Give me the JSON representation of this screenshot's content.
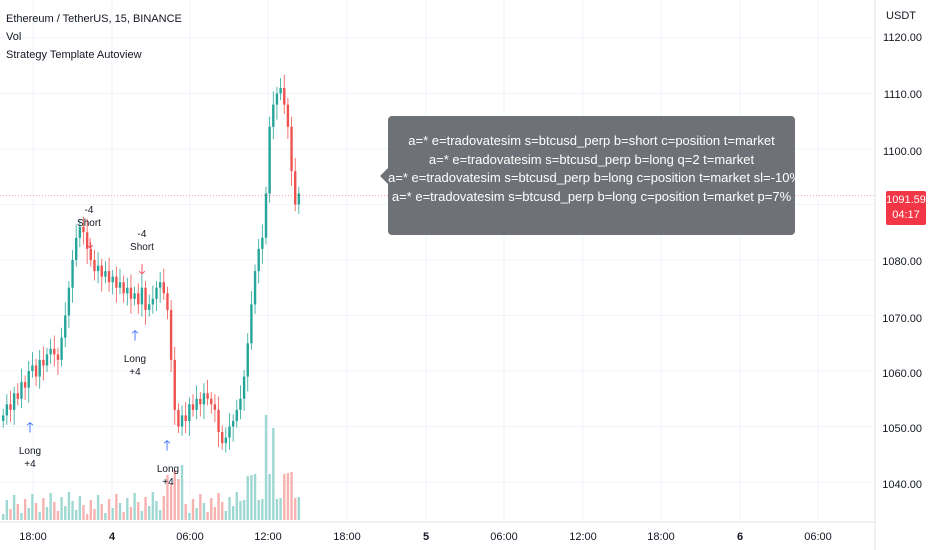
{
  "legend": {
    "symbol": "Ethereum / TetherUS, 15, BINANCE",
    "volume": "Vol",
    "strategy": "Strategy Template Autoview"
  },
  "y_axis": {
    "currency": "USDT",
    "ticks": [
      "1120.00",
      "1110.00",
      "1100.00",
      "1080.00",
      "1070.00",
      "1060.00",
      "1050.00",
      "1040.00"
    ]
  },
  "x_axis": {
    "ticks": [
      "18:00",
      "4",
      "06:00",
      "12:00",
      "18:00",
      "5",
      "06:00",
      "12:00",
      "18:00",
      "6",
      "06:00"
    ]
  },
  "last_price": {
    "price": "1091.59",
    "countdown": "04:17",
    "color": "#f23645"
  },
  "tooltip": {
    "lines": [
      "a=* e=tradovatesim s=btcusd_perp b=short c=position t=market",
      "a=* e=tradovatesim s=btcusd_perp b=long q=2 t=market",
      "a=* e=tradovatesim s=btcusd_perp b=long c=position t=market sl=-10%",
      "a=* e=tradovatesim s=btcusd_perp b=long c=position t=market p=7%"
    ]
  },
  "signals": [
    {
      "type": "long",
      "line1": "Long",
      "line2": "+4"
    },
    {
      "type": "short",
      "line1": "-4",
      "line2": "Short"
    },
    {
      "type": "short",
      "line1": "-4",
      "line2": "Short"
    },
    {
      "type": "long",
      "line1": "Long",
      "line2": "+4"
    },
    {
      "type": "long",
      "line1": "Long",
      "line2": "+4"
    }
  ],
  "colors": {
    "up": "#26a69a",
    "down": "#ef5350",
    "volume_up": "#9fd8d2",
    "volume_down": "#f7b2b0",
    "long_arrow": "#2962ff",
    "short_arrow": "#f23645"
  },
  "chart_data": {
    "type": "candlestick",
    "title": "Ethereum / TetherUS, 15, BINANCE",
    "ylabel": "USDT",
    "ylim": [
      1035,
      1124
    ],
    "closes": [
      1052,
      1054,
      1053,
      1056,
      1055,
      1058,
      1057,
      1060,
      1061,
      1059,
      1062,
      1061,
      1063,
      1064,
      1063,
      1062,
      1066,
      1070,
      1075,
      1080,
      1084,
      1086,
      1085,
      1082,
      1080,
      1078,
      1079,
      1077,
      1078,
      1076,
      1077,
      1075,
      1076,
      1074,
      1075,
      1073,
      1074,
      1072,
      1075,
      1071,
      1072,
      1073,
      1075,
      1076,
      1074,
      1071,
      1062,
      1053,
      1050,
      1052,
      1051,
      1054,
      1053,
      1055,
      1054,
      1056,
      1055,
      1054,
      1053,
      1049,
      1047,
      1048,
      1050,
      1051,
      1053,
      1055,
      1059,
      1065,
      1072,
      1078,
      1082,
      1084,
      1092,
      1104,
      1108,
      1110,
      1111,
      1108,
      1104,
      1096,
      1090,
      1092
    ]
  }
}
